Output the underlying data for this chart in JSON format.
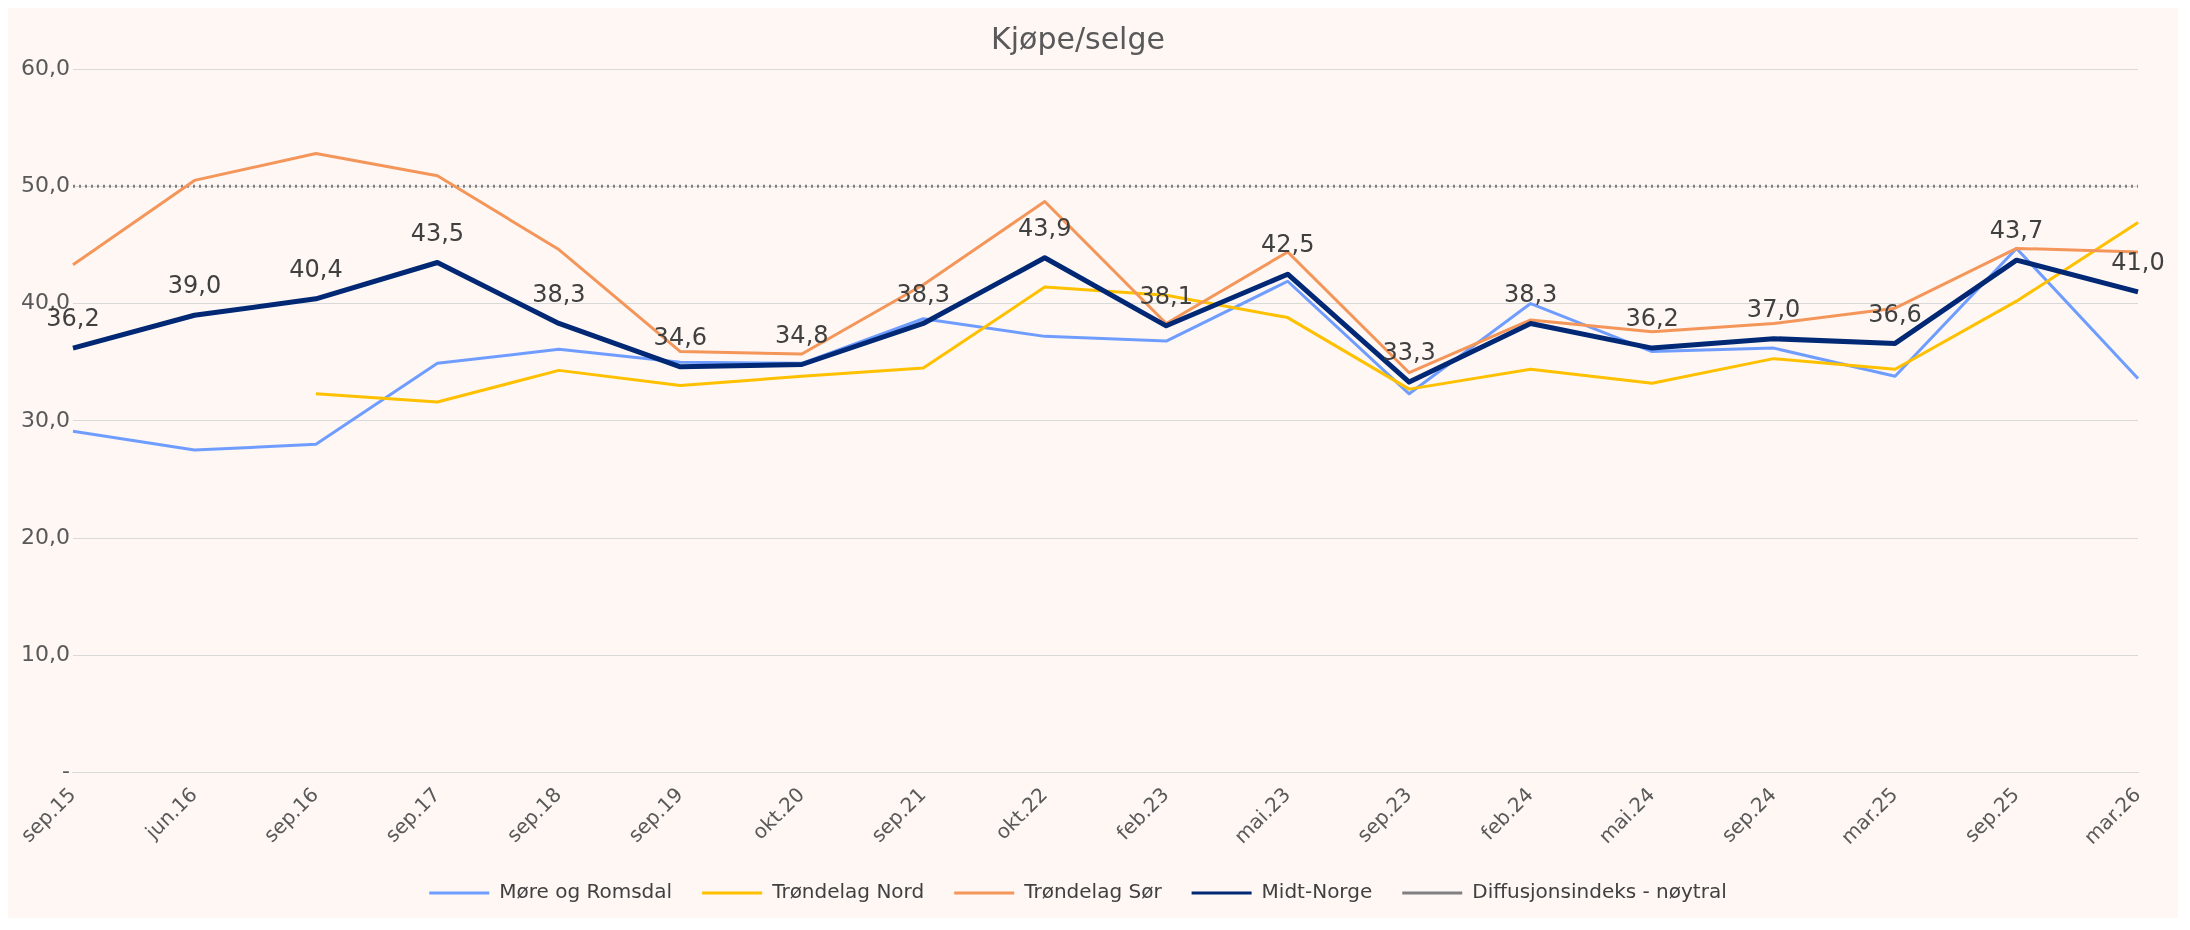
{
  "chart_data": {
    "type": "line",
    "title": "Kjøpe/selge",
    "categories": [
      "sep.15",
      "jun.16",
      "sep.16",
      "sep.17",
      "sep.18",
      "sep.19",
      "okt.20",
      "sep.21",
      "okt.22",
      "feb.23",
      "mai.23",
      "sep.23",
      "feb.24",
      "mai.24",
      "sep.24",
      "mar.25",
      "sep.25",
      "mar.26"
    ],
    "series": [
      {
        "name": "Møre og Romsdal",
        "color": "#6f9dff",
        "values": [
          29.1,
          27.5,
          28.0,
          34.9,
          36.1,
          35.0,
          34.9,
          38.7,
          37.2,
          36.8,
          41.9,
          32.3,
          40.0,
          35.9,
          36.2,
          33.8,
          44.7,
          33.6
        ]
      },
      {
        "name": "Trøndelag Nord",
        "color": "#ffc000",
        "values": [
          null,
          null,
          32.3,
          31.6,
          34.3,
          33.0,
          33.8,
          34.5,
          41.4,
          40.7,
          38.8,
          32.7,
          34.4,
          33.2,
          35.3,
          34.4,
          40.2,
          46.9
        ]
      },
      {
        "name": "Trøndelag Sør",
        "color": "#f4965a",
        "values": [
          43.3,
          50.5,
          52.8,
          50.9,
          44.6,
          35.9,
          35.7,
          41.6,
          48.7,
          38.3,
          44.4,
          34.1,
          38.6,
          37.6,
          38.3,
          39.6,
          44.7,
          44.4
        ]
      },
      {
        "name": "Midt-Norge",
        "color": "#002875",
        "values": [
          36.2,
          39.0,
          40.4,
          43.5,
          38.3,
          34.6,
          34.8,
          38.3,
          43.9,
          38.1,
          42.5,
          33.3,
          38.3,
          36.2,
          37.0,
          36.6,
          43.7,
          41.0
        ],
        "value_labels": [
          "36,2",
          "39,0",
          "40,4",
          "43,5",
          "38,3",
          "34,6",
          "34,8",
          "38,3",
          "43,9",
          "38,1",
          "42,5",
          "33,3",
          "38,3",
          "36,2",
          "37,0",
          "36,6",
          "43,7",
          "41,0"
        ]
      },
      {
        "name": "Diffusjonsindeks - nøytral",
        "color": "#808080",
        "line_style": "dotted",
        "values": [
          50,
          50,
          50,
          50,
          50,
          50,
          50,
          50,
          50,
          50,
          50,
          50,
          50,
          50,
          50,
          50,
          50,
          50
        ]
      }
    ],
    "ylim": [
      0,
      60
    ],
    "yticks": [
      {
        "value": 0,
        "label": "-"
      },
      {
        "value": 10,
        "label": "10,0"
      },
      {
        "value": 20,
        "label": "20,0"
      },
      {
        "value": 30,
        "label": "30,0"
      },
      {
        "value": 40,
        "label": "40,0"
      },
      {
        "value": 50,
        "label": "50,0"
      },
      {
        "value": 60,
        "label": "60,0"
      }
    ],
    "grid": "y",
    "legend": "bottom",
    "marker": "none"
  }
}
